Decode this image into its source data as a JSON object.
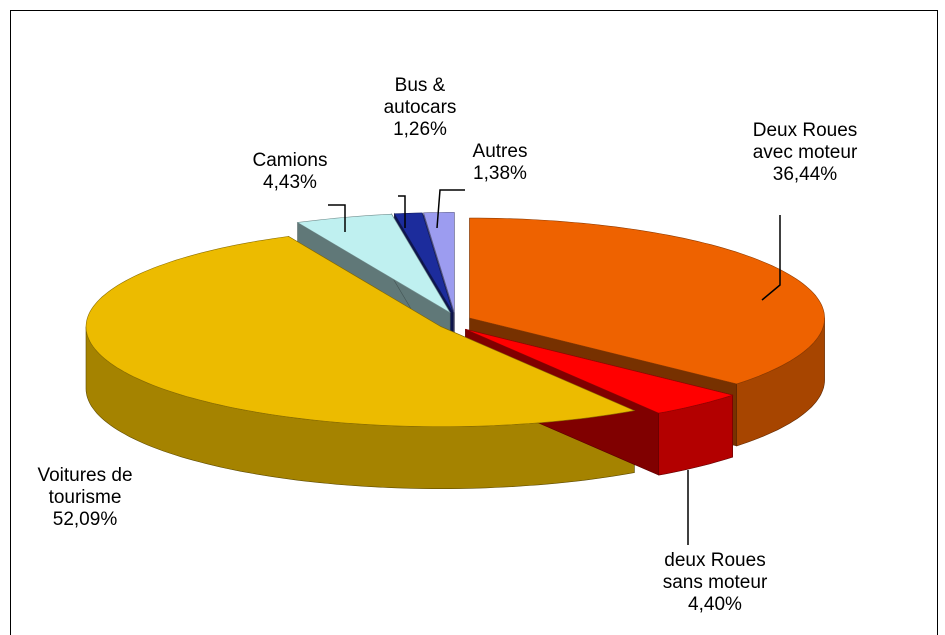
{
  "chart_data": {
    "type": "pie",
    "categories": [
      "Deux Roues\navec moteur",
      "deux Roues\nsans moteur",
      "Voitures de\ntourisme",
      "Camions",
      "Bus &\nautocars",
      "Autres"
    ],
    "values": [
      36.44,
      4.4,
      52.09,
      4.43,
      1.26,
      1.38
    ],
    "value_labels": [
      "36,44%",
      "4,40%",
      "52,09%",
      "4,43%",
      "1,26%",
      "1,38%"
    ],
    "colors": [
      "#ee6200",
      "#ff0000",
      "#ecbb00",
      "#bff0f0",
      "#1c2c9c",
      "#9c9cf0"
    ]
  }
}
